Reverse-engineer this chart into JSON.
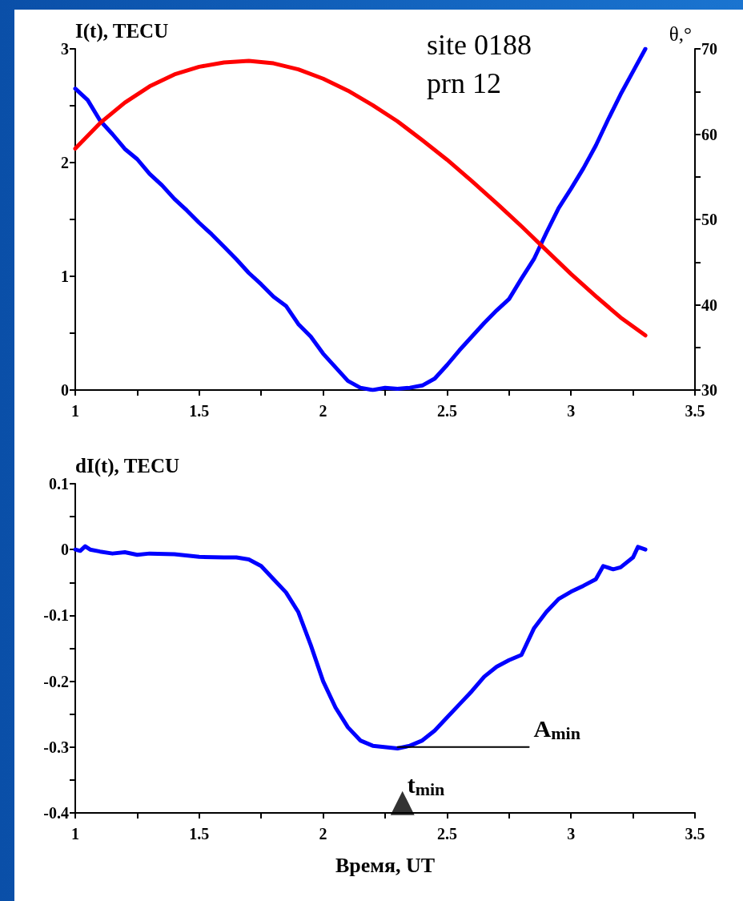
{
  "chart_data": [
    {
      "type": "line",
      "ylabel": "I(t), TECU",
      "y2label": "θ,°",
      "annotations": [
        "site 0188",
        "prn 12"
      ],
      "xlim": [
        1,
        3.5
      ],
      "xticks": [
        1,
        {
          "value": 1.25,
          "label": null
        },
        1.5,
        {
          "value": 1.75,
          "label": null
        },
        2,
        {
          "value": 2.25,
          "label": null
        },
        2.5,
        {
          "value": 2.75,
          "label": null
        },
        3,
        {
          "value": 3.25,
          "label": null
        },
        3.5
      ],
      "ylim": [
        0,
        3
      ],
      "yticks": [
        0,
        {
          "value": 0.5,
          "label": null
        },
        1,
        {
          "value": 1.5,
          "label": null
        },
        2,
        {
          "value": 2.5,
          "label": null
        },
        3
      ],
      "y2lim": [
        30,
        70
      ],
      "y2ticks": [
        30,
        {
          "value": 35,
          "label": null
        },
        40,
        {
          "value": 45,
          "label": null
        },
        50,
        {
          "value": 55,
          "label": null
        },
        60,
        {
          "value": 65,
          "label": null
        },
        70
      ],
      "grid": false,
      "marker": "none",
      "line_style": "solid",
      "series": [
        {
          "color": "#0000ff",
          "x": [
            1.0,
            1.05,
            1.1,
            1.15,
            1.2,
            1.25,
            1.3,
            1.35,
            1.4,
            1.45,
            1.5,
            1.55,
            1.6,
            1.65,
            1.7,
            1.75,
            1.8,
            1.85,
            1.9,
            1.95,
            2.0,
            2.05,
            2.1,
            2.15,
            2.2,
            2.25,
            2.3,
            2.35,
            2.4,
            2.45,
            2.5,
            2.55,
            2.6,
            2.65,
            2.7,
            2.75,
            2.8,
            2.85,
            2.9,
            2.95,
            3.0,
            3.05,
            3.1,
            3.15,
            3.2,
            3.25,
            3.3
          ],
          "values": [
            2.65,
            2.55,
            2.37,
            2.25,
            2.12,
            2.03,
            1.9,
            1.8,
            1.68,
            1.58,
            1.47,
            1.37,
            1.26,
            1.15,
            1.03,
            0.93,
            0.82,
            0.74,
            0.58,
            0.47,
            0.32,
            0.2,
            0.08,
            0.02,
            0.0,
            0.02,
            0.01,
            0.02,
            0.04,
            0.1,
            0.22,
            0.35,
            0.47,
            0.59,
            0.7,
            0.8,
            0.98,
            1.15,
            1.38,
            1.6,
            1.77,
            1.95,
            2.15,
            2.38,
            2.6,
            2.8,
            3.0
          ]
        },
        {
          "color": "#ff0000",
          "axis": "y2",
          "x": [
            1.0,
            1.1,
            1.2,
            1.3,
            1.4,
            1.5,
            1.6,
            1.7,
            1.8,
            1.9,
            2.0,
            2.1,
            2.2,
            2.3,
            2.4,
            2.5,
            2.6,
            2.7,
            2.8,
            2.9,
            3.0,
            3.1,
            3.2,
            3.3
          ],
          "values": [
            58.3,
            61.3,
            63.7,
            65.6,
            67.0,
            67.9,
            68.4,
            68.6,
            68.3,
            67.6,
            66.5,
            65.1,
            63.4,
            61.5,
            59.3,
            57.0,
            54.5,
            51.9,
            49.2,
            46.4,
            43.6,
            41.0,
            38.5,
            36.4
          ]
        }
      ]
    },
    {
      "type": "line",
      "ylabel": "dI(t), TECU",
      "xlabel": "Время, UT",
      "annotations": [
        {
          "text": "A$_{min}$",
          "x": 2.83,
          "y": -0.3
        },
        {
          "text": "t$_{min}$",
          "x": 2.32,
          "y": -0.385
        }
      ],
      "xlim": [
        1,
        3.5
      ],
      "xticks": [
        1,
        {
          "value": 1.25,
          "label": null
        },
        1.5,
        {
          "value": 1.75,
          "label": null
        },
        2,
        {
          "value": 2.25,
          "label": null
        },
        2.5,
        {
          "value": 2.75,
          "label": null
        },
        3,
        {
          "value": 3.25,
          "label": null
        },
        3.5
      ],
      "ylim": [
        -0.4,
        0.1
      ],
      "yticks": [
        -0.4,
        {
          "value": -0.35,
          "label": null
        },
        -0.3,
        {
          "value": -0.25,
          "label": null
        },
        -0.2,
        {
          "value": -0.15,
          "label": null
        },
        -0.1,
        {
          "value": -0.05,
          "label": null
        },
        0,
        {
          "value": 0.05,
          "label": null
        },
        0.1
      ],
      "grid": false,
      "marker": "none",
      "line_style": "solid",
      "series": [
        {
          "color": "#0000ff",
          "x": [
            1.0,
            1.02,
            1.04,
            1.06,
            1.1,
            1.15,
            1.2,
            1.25,
            1.3,
            1.4,
            1.5,
            1.6,
            1.65,
            1.7,
            1.75,
            1.8,
            1.85,
            1.9,
            1.95,
            2.0,
            2.05,
            2.1,
            2.15,
            2.2,
            2.3,
            2.35,
            2.4,
            2.45,
            2.5,
            2.55,
            2.6,
            2.65,
            2.7,
            2.75,
            2.8,
            2.85,
            2.9,
            2.95,
            3.0,
            3.05,
            3.1,
            3.13,
            3.17,
            3.2,
            3.25,
            3.27,
            3.3
          ],
          "values": [
            0,
            -0.002,
            0.005,
            0.0,
            -0.003,
            -0.006,
            -0.004,
            -0.008,
            -0.006,
            -0.007,
            -0.011,
            -0.012,
            -0.012,
            -0.015,
            -0.025,
            -0.045,
            -0.065,
            -0.095,
            -0.145,
            -0.2,
            -0.24,
            -0.27,
            -0.29,
            -0.298,
            -0.302,
            -0.298,
            -0.29,
            -0.275,
            -0.255,
            -0.235,
            -0.215,
            -0.193,
            -0.178,
            -0.168,
            -0.16,
            -0.12,
            -0.095,
            -0.075,
            -0.064,
            -0.055,
            -0.045,
            -0.025,
            -0.03,
            -0.027,
            -0.012,
            0.004,
            0
          ]
        },
        {
          "color": "#000000",
          "x": [
            2.3,
            2.83
          ],
          "values": [
            -0.3,
            -0.3
          ]
        },
        {
          "type": "scatter",
          "marker": "triangle",
          "color": "#000000",
          "x": [
            2.32
          ],
          "values": [
            -0.385
          ]
        }
      ]
    }
  ]
}
